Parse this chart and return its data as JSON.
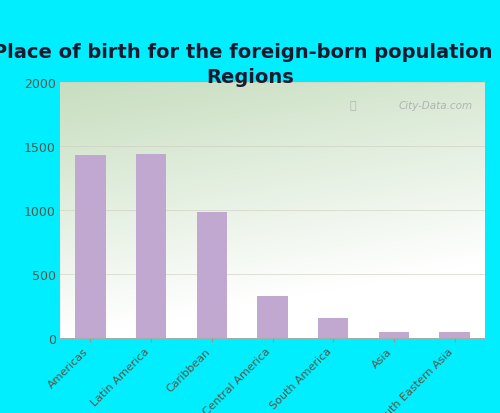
{
  "title": "Place of birth for the foreign-born population -\nRegions",
  "categories": [
    "Americas",
    "Latin America",
    "Caribbean",
    "Central America",
    "South America",
    "Asia",
    "South Eastern Asia"
  ],
  "values": [
    1430,
    1440,
    985,
    330,
    160,
    47,
    50
  ],
  "bar_color": "#c0a8d0",
  "ylim": [
    0,
    2000
  ],
  "yticks": [
    0,
    500,
    1000,
    1500,
    2000
  ],
  "outer_bg": "#00eeff",
  "title_fontsize": 14,
  "title_color": "#1a1a2e",
  "tick_label_color": "#555544",
  "watermark": "City-Data.com",
  "plot_bg_top": "#c8dfc0",
  "plot_bg_bottom": "#f0f8e8",
  "plot_bg_right": "#f8f8f0"
}
